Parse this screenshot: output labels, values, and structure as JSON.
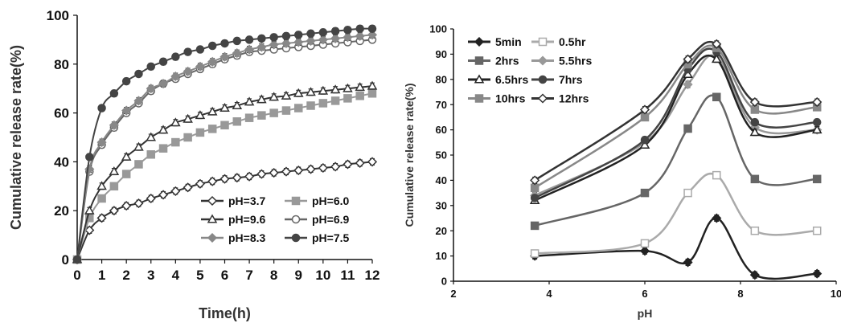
{
  "chart_data": [
    {
      "type": "line",
      "title": "",
      "xlabel": "Time(h)",
      "ylabel": "Cumulative release rate(%)",
      "xlim": [
        0,
        12
      ],
      "ylim": [
        0,
        100
      ],
      "xticks": [
        0,
        1,
        2,
        3,
        4,
        5,
        6,
        7,
        8,
        9,
        10,
        11,
        12
      ],
      "yticks": [
        0,
        20,
        40,
        60,
        80,
        100
      ],
      "grid": false,
      "legend_position": "bottom-right",
      "x": [
        0,
        0.5,
        1,
        1.5,
        2,
        2.5,
        3,
        3.5,
        4,
        4.5,
        5,
        5.5,
        6,
        6.5,
        7,
        7.5,
        8,
        8.5,
        9,
        9.5,
        10,
        10.5,
        11,
        11.5,
        12
      ],
      "series": [
        {
          "name": "pH=3.7",
          "color": "#333333",
          "marker": "diamond-open",
          "values": [
            0,
            12,
            17,
            20,
            22,
            23,
            25,
            26.5,
            28,
            29.5,
            31,
            32,
            33,
            33.5,
            34,
            35,
            35.5,
            36,
            36.5,
            37,
            37.5,
            38,
            39,
            39.5,
            40
          ]
        },
        {
          "name": "pH=6.0",
          "color": "#999999",
          "marker": "square-filled",
          "values": [
            0,
            17,
            25,
            30,
            35,
            39,
            43,
            45.5,
            48,
            50,
            52,
            53.5,
            55,
            56.5,
            58,
            59,
            60,
            61,
            62,
            63,
            64,
            65,
            66,
            67,
            68
          ]
        },
        {
          "name": "pH=9.6",
          "color": "#333333",
          "marker": "triangle-open",
          "values": [
            0,
            20,
            30,
            36,
            42,
            46,
            50,
            53,
            56,
            57.5,
            59,
            60.5,
            62,
            63,
            64.5,
            65.5,
            66.5,
            67,
            68,
            68.5,
            69,
            69.5,
            70,
            70.5,
            71
          ]
        },
        {
          "name": "pH=6.9",
          "color": "#666666",
          "marker": "circle-open",
          "values": [
            0,
            36,
            47,
            54,
            60,
            64,
            69,
            72,
            74,
            76,
            78,
            80,
            82,
            83.5,
            85,
            85.5,
            86,
            86.5,
            87,
            87.5,
            88,
            88.5,
            89,
            89.5,
            90
          ]
        },
        {
          "name": "pH=8.3",
          "color": "#888888",
          "marker": "diamond-filled",
          "values": [
            0,
            37,
            48,
            55,
            61,
            65,
            70,
            72,
            75,
            77,
            79,
            81,
            83,
            84.5,
            86,
            87,
            88,
            88.5,
            89,
            89.5,
            90,
            90.5,
            91,
            91.5,
            92
          ]
        },
        {
          "name": "pH=7.5",
          "color": "#444444",
          "marker": "circle-filled",
          "values": [
            0,
            42,
            62,
            68,
            73,
            76,
            79,
            81,
            83,
            85,
            86,
            87.5,
            88.5,
            89.5,
            90,
            90.5,
            91,
            91.5,
            92,
            92.5,
            93,
            93.5,
            94,
            94.5,
            94.5
          ]
        }
      ]
    },
    {
      "type": "line",
      "title": "",
      "xlabel": "pH",
      "ylabel": "Cumulative release rate(%)",
      "xlim": [
        2,
        10
      ],
      "ylim": [
        0,
        100
      ],
      "xticks": [
        2,
        4,
        6,
        8,
        10
      ],
      "yticks": [
        0,
        10,
        20,
        30,
        40,
        50,
        60,
        70,
        80,
        90,
        100
      ],
      "grid": false,
      "legend_position": "top-left",
      "x": [
        3.7,
        6.0,
        6.9,
        7.5,
        8.3,
        9.6
      ],
      "series": [
        {
          "name": "5min",
          "color": "#222222",
          "marker": "diamond-filled",
          "values": [
            10,
            12,
            7.5,
            25,
            2.5,
            3
          ]
        },
        {
          "name": "0.5hr",
          "color": "#aaaaaa",
          "marker": "square-open",
          "values": [
            11,
            15,
            35,
            42,
            20,
            20
          ]
        },
        {
          "name": "2hrs",
          "color": "#666666",
          "marker": "square-filled",
          "values": [
            22,
            35,
            60.5,
            73,
            40.5,
            40.5
          ]
        },
        {
          "name": "5.5hrs",
          "color": "#999999",
          "marker": "diamond-filled",
          "values": [
            34,
            55,
            78,
            89,
            61,
            60
          ]
        },
        {
          "name": "6.5hrs",
          "color": "#222222",
          "marker": "triangle-open",
          "values": [
            32,
            54,
            82,
            88,
            59,
            60
          ]
        },
        {
          "name": "7hrs",
          "color": "#444444",
          "marker": "circle-filled",
          "values": [
            33,
            56,
            84,
            91,
            63,
            63
          ]
        },
        {
          "name": "10hrs",
          "color": "#888888",
          "marker": "square-filled",
          "values": [
            37,
            65,
            86,
            92.5,
            68,
            69
          ]
        },
        {
          "name": "12hrs",
          "color": "#333333",
          "marker": "diamond-open",
          "values": [
            40,
            68,
            88,
            94,
            71,
            71
          ]
        }
      ]
    }
  ]
}
